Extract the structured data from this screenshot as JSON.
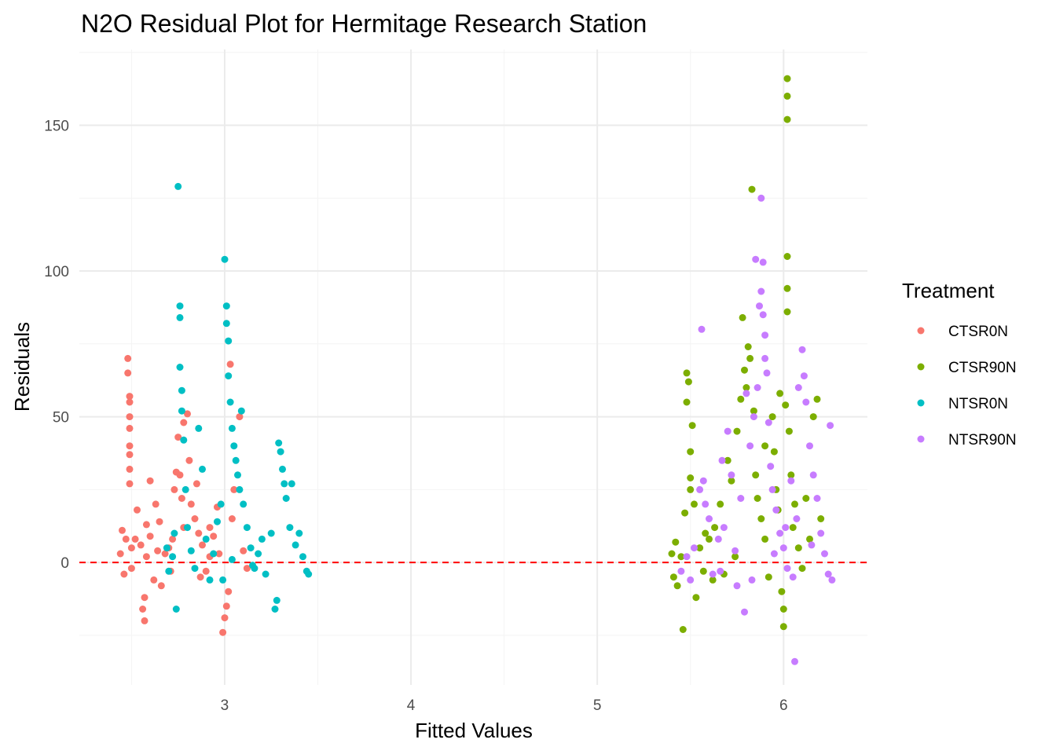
{
  "chart_data": {
    "type": "scatter",
    "title": "N2O Residual Plot for Hermitage Research Station",
    "xlabel": "Fitted Values",
    "ylabel": "Residuals",
    "xlim": [
      2.22,
      6.45
    ],
    "ylim": [
      -42,
      176
    ],
    "x_ticks": [
      3,
      4,
      5,
      6
    ],
    "y_ticks": [
      0,
      50,
      100,
      150
    ],
    "grid": true,
    "reference_line": {
      "y": 0,
      "color": "#ff0000",
      "style": "dashed"
    },
    "legend": {
      "title": "Treatment",
      "position": "right"
    },
    "series": [
      {
        "name": "CTSR0N",
        "color": "#F8766D",
        "points": [
          [
            2.45,
            11
          ],
          [
            2.47,
            8
          ],
          [
            2.48,
            70
          ],
          [
            2.48,
            65
          ],
          [
            2.49,
            57
          ],
          [
            2.49,
            55
          ],
          [
            2.49,
            50
          ],
          [
            2.49,
            46
          ],
          [
            2.49,
            40
          ],
          [
            2.49,
            37
          ],
          [
            2.49,
            32
          ],
          [
            2.49,
            27
          ],
          [
            2.5,
            5
          ],
          [
            2.5,
            -2
          ],
          [
            2.52,
            8
          ],
          [
            2.44,
            3
          ],
          [
            2.46,
            -4
          ],
          [
            2.55,
            6
          ],
          [
            2.58,
            2
          ],
          [
            2.6,
            9
          ],
          [
            2.62,
            -6
          ],
          [
            2.64,
            4
          ],
          [
            2.66,
            -8
          ],
          [
            2.68,
            3
          ],
          [
            2.56,
            -16
          ],
          [
            2.57,
            -20
          ],
          [
            2.57,
            -12
          ],
          [
            2.6,
            28
          ],
          [
            2.63,
            20
          ],
          [
            2.65,
            14
          ],
          [
            2.53,
            18
          ],
          [
            2.58,
            13
          ],
          [
            2.7,
            5
          ],
          [
            2.71,
            -3
          ],
          [
            2.73,
            25
          ],
          [
            2.74,
            31
          ],
          [
            2.75,
            43
          ],
          [
            2.76,
            30
          ],
          [
            2.77,
            22
          ],
          [
            2.78,
            48
          ],
          [
            2.8,
            51
          ],
          [
            2.81,
            35
          ],
          [
            2.82,
            20
          ],
          [
            2.84,
            15
          ],
          [
            2.85,
            27
          ],
          [
            2.78,
            12
          ],
          [
            2.72,
            8
          ],
          [
            2.86,
            10
          ],
          [
            2.88,
            6
          ],
          [
            2.9,
            -3
          ],
          [
            2.92,
            2
          ],
          [
            2.94,
            9
          ],
          [
            2.97,
            3
          ],
          [
            2.99,
            -24
          ],
          [
            3.0,
            -19
          ],
          [
            3.01,
            -15
          ],
          [
            3.02,
            -10
          ],
          [
            3.03,
            68
          ],
          [
            3.08,
            50
          ],
          [
            3.05,
            25
          ],
          [
            3.04,
            15
          ],
          [
            3.1,
            4
          ],
          [
            3.12,
            -2
          ],
          [
            2.96,
            19
          ],
          [
            2.92,
            12
          ],
          [
            2.87,
            -5
          ]
        ]
      },
      {
        "name": "CTSR90N",
        "color": "#7CAE00",
        "points": [
          [
            5.4,
            3
          ],
          [
            5.41,
            -5
          ],
          [
            5.42,
            7
          ],
          [
            5.43,
            -8
          ],
          [
            5.45,
            2
          ],
          [
            5.46,
            -23
          ],
          [
            5.47,
            17
          ],
          [
            5.48,
            55
          ],
          [
            5.48,
            65
          ],
          [
            5.49,
            62
          ],
          [
            5.5,
            38
          ],
          [
            5.5,
            29
          ],
          [
            5.5,
            25
          ],
          [
            5.51,
            47
          ],
          [
            5.52,
            20
          ],
          [
            5.53,
            -12
          ],
          [
            5.55,
            5
          ],
          [
            5.57,
            -3
          ],
          [
            5.6,
            8
          ],
          [
            5.63,
            12
          ],
          [
            5.66,
            20
          ],
          [
            5.68,
            -4
          ],
          [
            5.7,
            35
          ],
          [
            5.72,
            28
          ],
          [
            5.75,
            45
          ],
          [
            5.77,
            56
          ],
          [
            5.78,
            84
          ],
          [
            5.79,
            66
          ],
          [
            5.8,
            60
          ],
          [
            5.81,
            74
          ],
          [
            5.82,
            70
          ],
          [
            5.83,
            128
          ],
          [
            5.84,
            52
          ],
          [
            5.85,
            30
          ],
          [
            5.86,
            22
          ],
          [
            5.88,
            15
          ],
          [
            5.9,
            8
          ],
          [
            5.92,
            -5
          ],
          [
            5.94,
            50
          ],
          [
            5.95,
            38
          ],
          [
            5.96,
            25
          ],
          [
            5.97,
            18
          ],
          [
            5.98,
            58
          ],
          [
            5.99,
            -10
          ],
          [
            6.0,
            -22
          ],
          [
            6.0,
            -16
          ],
          [
            6.01,
            54
          ],
          [
            6.02,
            105
          ],
          [
            6.02,
            94
          ],
          [
            6.02,
            86
          ],
          [
            6.02,
            166
          ],
          [
            6.02,
            160
          ],
          [
            6.02,
            152
          ],
          [
            6.03,
            45
          ],
          [
            6.04,
            30
          ],
          [
            6.05,
            12
          ],
          [
            6.06,
            20
          ],
          [
            6.08,
            5
          ],
          [
            6.1,
            -2
          ],
          [
            6.12,
            22
          ],
          [
            6.14,
            8
          ],
          [
            6.16,
            50
          ],
          [
            6.18,
            56
          ],
          [
            6.2,
            15
          ],
          [
            5.58,
            10
          ],
          [
            5.62,
            -6
          ],
          [
            5.74,
            2
          ],
          [
            5.9,
            40
          ]
        ]
      },
      {
        "name": "NTSR0N",
        "color": "#00BFC4",
        "points": [
          [
            2.69,
            5
          ],
          [
            2.7,
            -3
          ],
          [
            2.72,
            2
          ],
          [
            2.73,
            10
          ],
          [
            2.74,
            -16
          ],
          [
            2.75,
            129
          ],
          [
            2.76,
            88
          ],
          [
            2.76,
            84
          ],
          [
            2.76,
            67
          ],
          [
            2.77,
            59
          ],
          [
            2.77,
            52
          ],
          [
            2.78,
            42
          ],
          [
            2.79,
            25
          ],
          [
            2.8,
            12
          ],
          [
            2.82,
            4
          ],
          [
            2.84,
            -2
          ],
          [
            2.86,
            46
          ],
          [
            2.88,
            32
          ],
          [
            2.9,
            8
          ],
          [
            2.92,
            -6
          ],
          [
            2.94,
            3
          ],
          [
            2.96,
            14
          ],
          [
            2.98,
            20
          ],
          [
            3.0,
            104
          ],
          [
            3.01,
            88
          ],
          [
            3.01,
            82
          ],
          [
            3.02,
            76
          ],
          [
            3.02,
            64
          ],
          [
            3.03,
            55
          ],
          [
            3.04,
            46
          ],
          [
            3.05,
            40
          ],
          [
            3.06,
            35
          ],
          [
            3.07,
            30
          ],
          [
            3.08,
            25
          ],
          [
            3.09,
            52
          ],
          [
            3.1,
            20
          ],
          [
            3.12,
            12
          ],
          [
            3.14,
            5
          ],
          [
            3.16,
            -2
          ],
          [
            3.18,
            3
          ],
          [
            3.2,
            8
          ],
          [
            3.22,
            -4
          ],
          [
            3.25,
            10
          ],
          [
            3.27,
            -16
          ],
          [
            3.28,
            -13
          ],
          [
            3.29,
            41
          ],
          [
            3.3,
            38
          ],
          [
            3.31,
            32
          ],
          [
            3.32,
            27
          ],
          [
            3.33,
            22
          ],
          [
            3.35,
            12
          ],
          [
            3.36,
            27
          ],
          [
            3.38,
            6
          ],
          [
            3.4,
            10
          ],
          [
            3.42,
            2
          ],
          [
            3.44,
            -3
          ],
          [
            3.45,
            -4
          ],
          [
            2.99,
            -6
          ],
          [
            3.04,
            1
          ],
          [
            3.15,
            -1
          ]
        ]
      },
      {
        "name": "NTSR90N",
        "color": "#C77CFF",
        "points": [
          [
            5.45,
            -3
          ],
          [
            5.48,
            2
          ],
          [
            5.5,
            -6
          ],
          [
            5.52,
            5
          ],
          [
            5.55,
            25
          ],
          [
            5.56,
            80
          ],
          [
            5.57,
            28
          ],
          [
            5.58,
            20
          ],
          [
            5.6,
            15
          ],
          [
            5.62,
            -4
          ],
          [
            5.65,
            8
          ],
          [
            5.67,
            35
          ],
          [
            5.68,
            12
          ],
          [
            5.7,
            45
          ],
          [
            5.72,
            30
          ],
          [
            5.75,
            -8
          ],
          [
            5.77,
            22
          ],
          [
            5.79,
            -17
          ],
          [
            5.8,
            58
          ],
          [
            5.82,
            40
          ],
          [
            5.84,
            50
          ],
          [
            5.85,
            104
          ],
          [
            5.86,
            60
          ],
          [
            5.87,
            88
          ],
          [
            5.88,
            125
          ],
          [
            5.88,
            93
          ],
          [
            5.89,
            103
          ],
          [
            5.89,
            85
          ],
          [
            5.9,
            78
          ],
          [
            5.9,
            70
          ],
          [
            5.91,
            65
          ],
          [
            5.92,
            48
          ],
          [
            5.93,
            33
          ],
          [
            5.94,
            25
          ],
          [
            5.96,
            18
          ],
          [
            5.98,
            10
          ],
          [
            6.0,
            5
          ],
          [
            6.02,
            -2
          ],
          [
            6.04,
            28
          ],
          [
            6.05,
            -5
          ],
          [
            6.06,
            -34
          ],
          [
            6.07,
            15
          ],
          [
            6.08,
            60
          ],
          [
            6.1,
            73
          ],
          [
            6.11,
            64
          ],
          [
            6.12,
            55
          ],
          [
            6.14,
            40
          ],
          [
            6.16,
            30
          ],
          [
            6.18,
            22
          ],
          [
            6.2,
            10
          ],
          [
            6.22,
            3
          ],
          [
            6.24,
            -4
          ],
          [
            6.25,
            47
          ],
          [
            6.26,
            -6
          ],
          [
            5.95,
            3
          ],
          [
            5.83,
            -6
          ],
          [
            6.15,
            6
          ],
          [
            5.74,
            4
          ],
          [
            6.01,
            12
          ],
          [
            5.66,
            -3
          ]
        ]
      }
    ]
  }
}
